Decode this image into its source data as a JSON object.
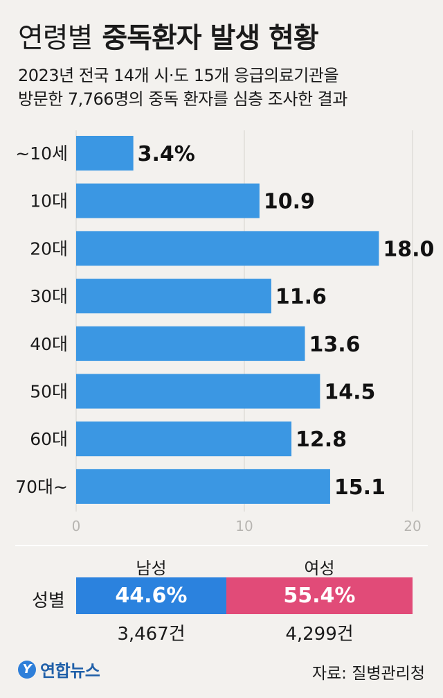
{
  "header": {
    "title_light": "연령별",
    "title_bold": "중독환자 발생 현황",
    "subtitle_line1": "2023년 전국 14개 시·도 15개 응급의료기관을",
    "subtitle_line2": "방문한 7,766명의 중독 환자를 심층 조사한 결과"
  },
  "chart_data": {
    "type": "bar",
    "orientation": "horizontal",
    "categories": [
      "~10세",
      "10대",
      "20대",
      "30대",
      "40대",
      "50대",
      "60대",
      "70대~"
    ],
    "values": [
      3.4,
      10.9,
      18.0,
      11.6,
      13.6,
      14.5,
      12.8,
      15.1
    ],
    "value_labels": [
      "3.4%",
      "10.9",
      "18.0",
      "11.6",
      "13.6",
      "14.5",
      "12.8",
      "15.1"
    ],
    "xlim": [
      0,
      20
    ],
    "xticks": [
      "0",
      "10",
      "20"
    ],
    "bar_color": "#3b97e3"
  },
  "gender": {
    "male_head": "남성",
    "female_head": "여성",
    "row_label": "성별",
    "male_percent": "44.6%",
    "female_percent": "55.4%",
    "male_share": 44.6,
    "female_share": 55.4,
    "male_count": "3,467건",
    "female_count": "4,299건",
    "male_color": "#2b82de",
    "female_color": "#e14b78"
  },
  "footer": {
    "logo_mark": "Y",
    "logo_text": "연합뉴스",
    "source": "자료: 질병관리청"
  }
}
